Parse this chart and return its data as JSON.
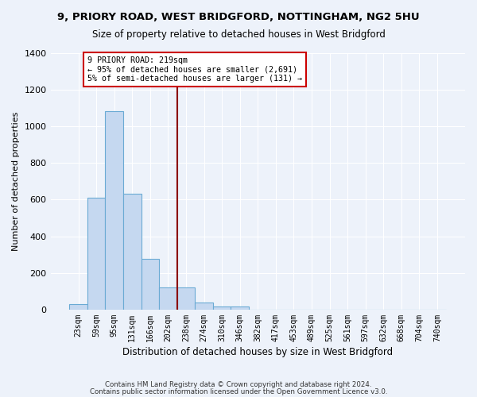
{
  "title1": "9, PRIORY ROAD, WEST BRIDGFORD, NOTTINGHAM, NG2 5HU",
  "title2": "Size of property relative to detached houses in West Bridgford",
  "xlabel": "Distribution of detached houses by size in West Bridgford",
  "ylabel": "Number of detached properties",
  "footer1": "Contains HM Land Registry data © Crown copyright and database right 2024.",
  "footer2": "Contains public sector information licensed under the Open Government Licence v3.0.",
  "bin_labels": [
    "23sqm",
    "59sqm",
    "95sqm",
    "131sqm",
    "166sqm",
    "202sqm",
    "238sqm",
    "274sqm",
    "310sqm",
    "346sqm",
    "382sqm",
    "417sqm",
    "453sqm",
    "489sqm",
    "525sqm",
    "561sqm",
    "597sqm",
    "632sqm",
    "668sqm",
    "704sqm",
    "740sqm"
  ],
  "bar_heights": [
    30,
    610,
    1080,
    630,
    275,
    120,
    120,
    40,
    18,
    18,
    0,
    0,
    0,
    0,
    0,
    0,
    0,
    0,
    0,
    0,
    0
  ],
  "bar_color": "#c5d8f0",
  "bar_edgecolor": "#6aaad4",
  "vline_x_index": 5.5,
  "annotation_line1": "9 PRIORY ROAD: 219sqm",
  "annotation_line2": "← 95% of detached houses are smaller (2,691)",
  "annotation_line3": "5% of semi-detached houses are larger (131) →",
  "annotation_box_color": "#ffffff",
  "annotation_box_edgecolor": "#cc0000",
  "vline_color": "#8b0000",
  "ylim": [
    0,
    1400
  ],
  "yticks": [
    0,
    200,
    400,
    600,
    800,
    1000,
    1200,
    1400
  ],
  "background_color": "#edf2fa",
  "grid_color": "#ffffff"
}
